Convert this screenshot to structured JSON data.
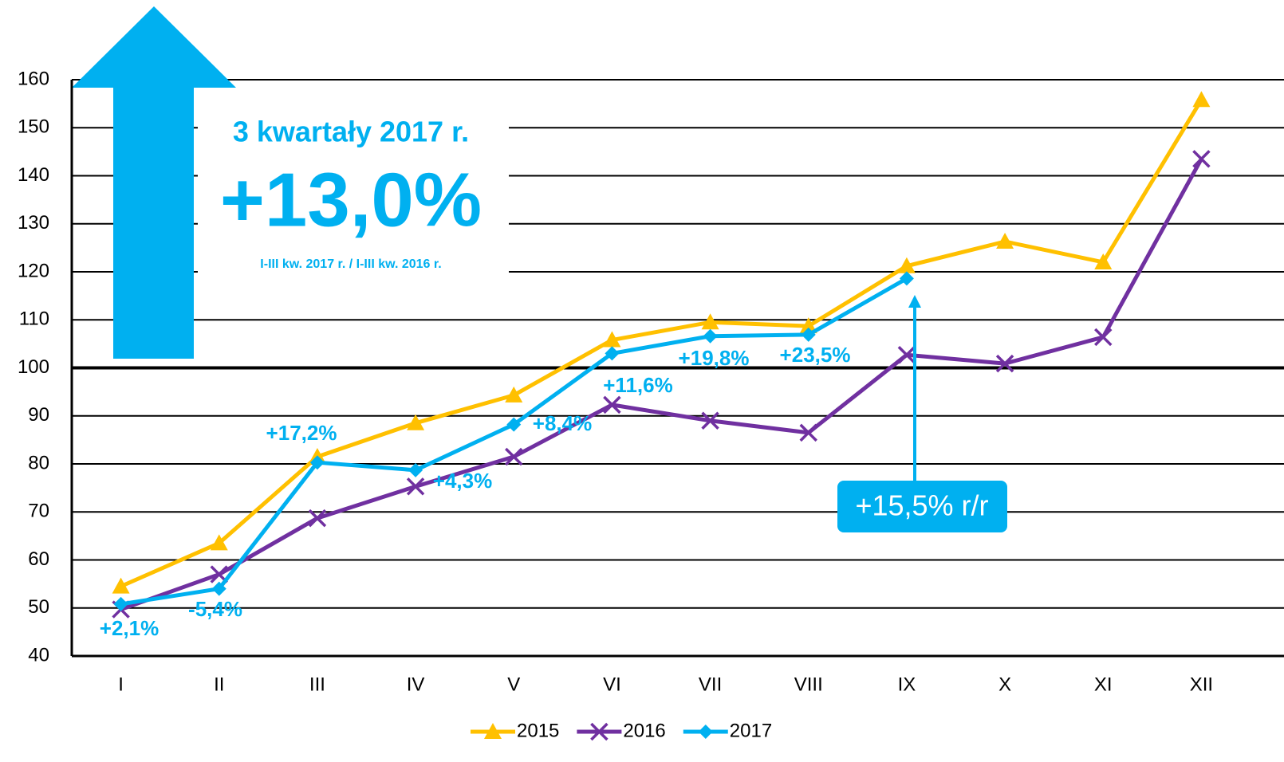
{
  "chart_data": {
    "type": "line",
    "categories": [
      "I",
      "II",
      "III",
      "IV",
      "V",
      "VI",
      "VII",
      "VIII",
      "IX",
      "X",
      "XI",
      "XII"
    ],
    "series": [
      {
        "name": "2015",
        "color": "#ffc000",
        "marker": "triangle",
        "values": [
          54.5,
          63.5,
          81.5,
          88.5,
          94.3,
          105.8,
          109.5,
          108.7,
          121.2,
          126.3,
          122,
          155.8
        ]
      },
      {
        "name": "2016",
        "color": "#7030a0",
        "marker": "x",
        "values": [
          49.7,
          57,
          68.7,
          75.3,
          81.5,
          92.3,
          89,
          86.5,
          102.7,
          100.9,
          106.4,
          143.5
        ]
      },
      {
        "name": "2017",
        "color": "#00b0f0",
        "marker": "diamond",
        "values": [
          50.8,
          54,
          80.3,
          78.7,
          88.2,
          103,
          106.6,
          106.9,
          118.6,
          null,
          null,
          null
        ]
      }
    ],
    "ylim": [
      40,
      160
    ],
    "yticks": [
      40,
      50,
      60,
      70,
      80,
      90,
      100,
      110,
      120,
      130,
      140,
      150,
      160
    ],
    "grid": true,
    "reference_line": 100,
    "legend": "bottom",
    "annotations": [
      "+2,1%",
      "-5,4%",
      "+17,2%",
      "+4,3%",
      "+8,4%",
      "+11,6%",
      "+19,8%",
      "+23,5%"
    ],
    "headline": "3 kwartały 2017 r.",
    "headline_value": "+13,0%",
    "headline_note": "I-III kw. 2017 r. / I-III kw. 2016 r.",
    "callout": "+15,5% r/r"
  }
}
